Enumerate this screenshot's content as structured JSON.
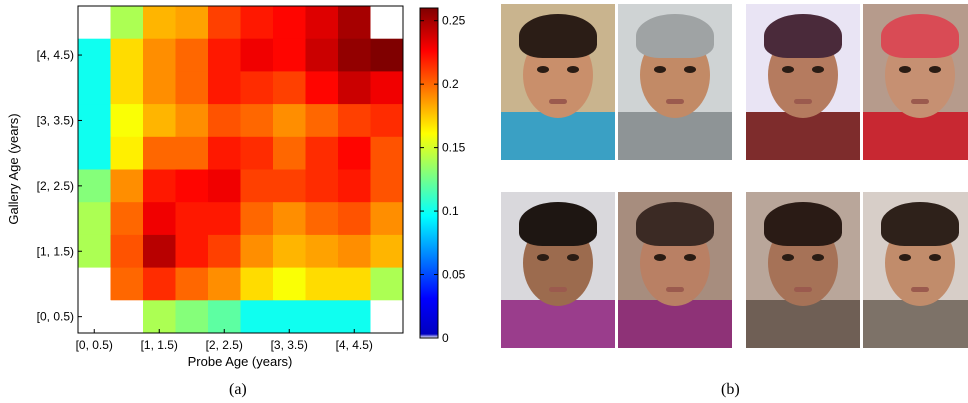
{
  "chart_data": {
    "type": "heatmap",
    "xlabel": "Probe Age (years)",
    "ylabel": "Gallery Age (years)",
    "x_tick_labels": [
      "[0, 0.5)",
      "[1, 1.5)",
      "[2, 2.5)",
      "[3, 3.5)",
      "[4, 4.5)"
    ],
    "y_tick_labels": [
      "[0, 0.5)",
      "[1, 1.5)",
      "[2, 2.5)",
      "[3, 3.5)",
      "[4, 4.5)"
    ],
    "colorbar_ticks": [
      "0",
      "0.05",
      "0.1",
      "0.15",
      "0.2",
      "0.25"
    ],
    "colorbar_range": [
      0,
      0.26
    ],
    "colormap": "jet-with-white-zero",
    "grid": false,
    "values_top_to_bottom": [
      [
        0,
        0.14,
        0.18,
        0.185,
        0.21,
        0.22,
        0.225,
        0.235,
        0.25,
        0
      ],
      [
        0.1,
        0.17,
        0.19,
        0.2,
        0.22,
        0.23,
        0.225,
        0.24,
        0.255,
        0.26
      ],
      [
        0.1,
        0.17,
        0.19,
        0.2,
        0.22,
        0.215,
        0.21,
        0.225,
        0.24,
        0.23
      ],
      [
        0.1,
        0.16,
        0.18,
        0.19,
        0.205,
        0.2,
        0.19,
        0.2,
        0.21,
        0.215
      ],
      [
        0.1,
        0.165,
        0.2,
        0.2,
        0.22,
        0.215,
        0.2,
        0.215,
        0.225,
        0.205
      ],
      [
        0.13,
        0.19,
        0.22,
        0.225,
        0.23,
        0.21,
        0.21,
        0.215,
        0.22,
        0.205
      ],
      [
        0.14,
        0.2,
        0.23,
        0.22,
        0.22,
        0.2,
        0.19,
        0.2,
        0.205,
        0.19
      ],
      [
        0.14,
        0.205,
        0.245,
        0.22,
        0.21,
        0.19,
        0.18,
        0.185,
        0.19,
        0.18
      ],
      [
        0,
        0.2,
        0.215,
        0.2,
        0.19,
        0.17,
        0.16,
        0.17,
        0.17,
        0.14
      ],
      [
        0,
        0,
        0.14,
        0.13,
        0.12,
        0.1,
        0.1,
        0.1,
        0.1,
        0
      ]
    ]
  },
  "captions": {
    "left": "(a)",
    "right": "(b)"
  },
  "photos": {
    "top_left": [
      {
        "name": "child-photo-1",
        "bg": "#c9b48e",
        "skin": "#c98f6b",
        "hair": "#2b1d16",
        "shirt": "#3aa0c4"
      },
      {
        "name": "child-photo-2",
        "bg": "#cfd3d4",
        "skin": "#c28a66",
        "hair": "#9fa3a4",
        "shirt": "#8e9496"
      }
    ],
    "top_right": [
      {
        "name": "child-photo-3",
        "bg": "#e9e4f4",
        "skin": "#b57b5f",
        "hair": "#4a2a3a",
        "shirt": "#7e2c2c"
      },
      {
        "name": "child-photo-4",
        "bg": "#b69b8c",
        "skin": "#c69072",
        "hair": "#d94b55",
        "shirt": "#c82832"
      }
    ],
    "bottom_left": [
      {
        "name": "child-photo-5",
        "bg": "#d9d8dc",
        "skin": "#9c6b4e",
        "hair": "#1e1612",
        "shirt": "#9a3d8c"
      },
      {
        "name": "child-photo-6",
        "bg": "#a78d7e",
        "skin": "#b98064",
        "hair": "#3b2a24",
        "shirt": "#8e3277"
      }
    ],
    "bottom_right": [
      {
        "name": "child-photo-7",
        "bg": "#b9a69a",
        "skin": "#a67257",
        "hair": "#2a1b15",
        "shirt": "#6f5f55"
      },
      {
        "name": "child-photo-8",
        "bg": "#d7cec8",
        "skin": "#c18c6b",
        "hair": "#2e211a",
        "shirt": "#7d7268"
      }
    ]
  }
}
